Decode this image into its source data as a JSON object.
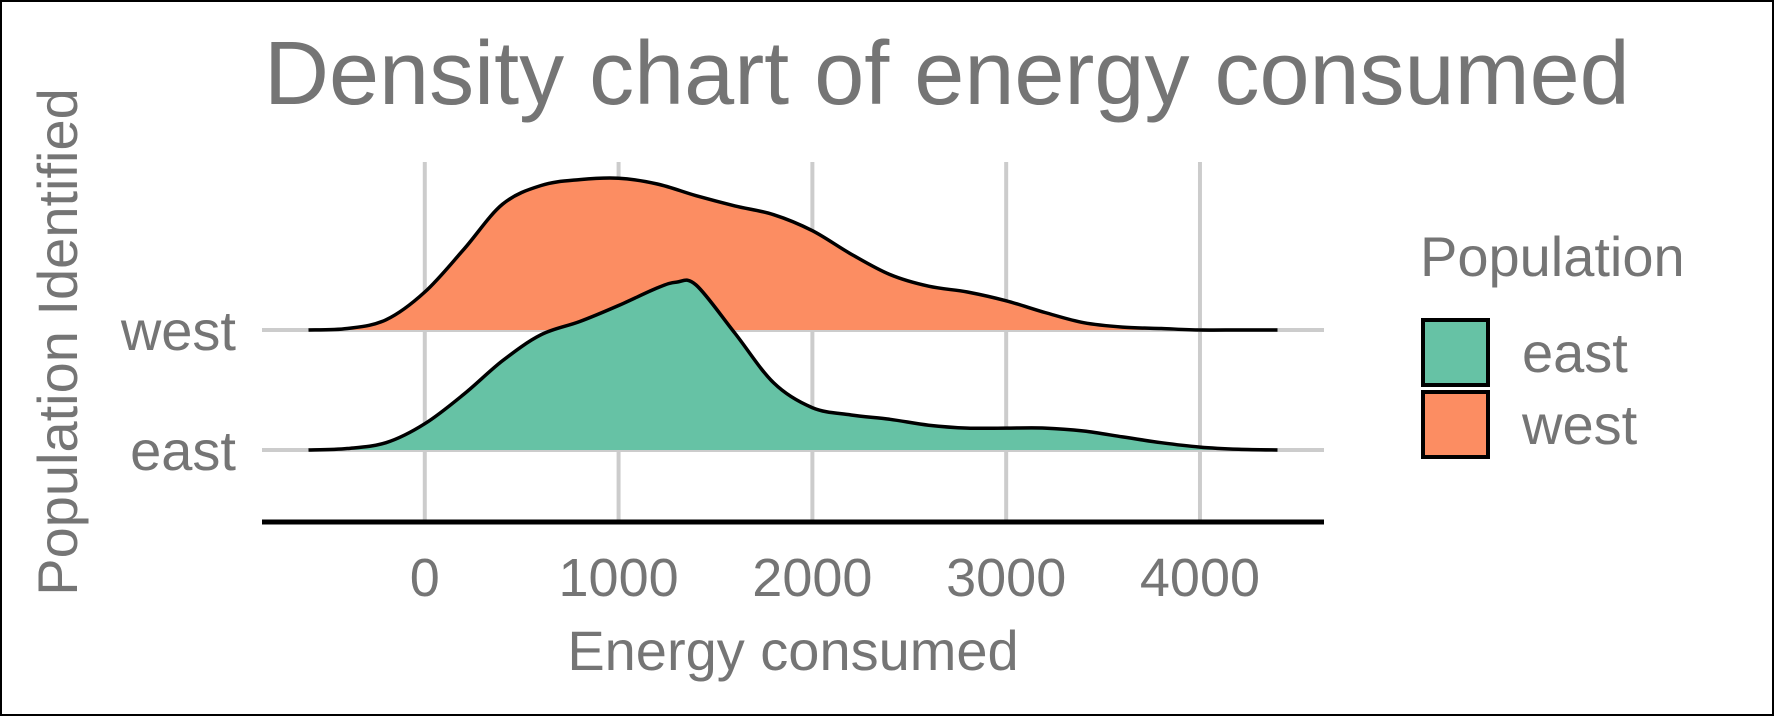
{
  "chart_data": {
    "type": "ridgeline-density",
    "title": "Density chart of energy consumed",
    "xlabel": "Energy consumed",
    "ylabel": "Population Identified",
    "xlim": [
      -840,
      4640
    ],
    "x_ticks": [
      0,
      1000,
      2000,
      3000,
      4000
    ],
    "x_tick_labels": [
      "0",
      "1000",
      "2000",
      "3000",
      "4000"
    ],
    "grid": true,
    "legend": {
      "title": "Population",
      "position": "right"
    },
    "series": [
      {
        "name": "east",
        "color": "#66c2a5",
        "x": [
          -600,
          -400,
          -200,
          0,
          200,
          400,
          600,
          800,
          1000,
          1200,
          1300,
          1400,
          1600,
          1800,
          2000,
          2200,
          2400,
          2600,
          2800,
          3000,
          3200,
          3400,
          3600,
          3800,
          4000,
          4200,
          4400
        ],
        "density": [
          0.0,
          0.01,
          0.05,
          0.18,
          0.38,
          0.61,
          0.79,
          0.88,
          0.99,
          1.11,
          1.15,
          1.13,
          0.8,
          0.46,
          0.29,
          0.24,
          0.21,
          0.17,
          0.15,
          0.15,
          0.15,
          0.13,
          0.09,
          0.05,
          0.02,
          0.005,
          0.0
        ]
      },
      {
        "name": "west",
        "color": "#fc8d62",
        "x": [
          -600,
          -400,
          -200,
          0,
          200,
          400,
          600,
          800,
          1000,
          1200,
          1400,
          1600,
          1800,
          2000,
          2200,
          2400,
          2600,
          2800,
          3000,
          3200,
          3400,
          3600,
          3800,
          4000,
          4200,
          4400
        ],
        "density": [
          0.0,
          0.01,
          0.07,
          0.26,
          0.55,
          0.86,
          0.99,
          1.03,
          1.04,
          1.0,
          0.92,
          0.85,
          0.79,
          0.68,
          0.52,
          0.38,
          0.3,
          0.26,
          0.2,
          0.12,
          0.05,
          0.02,
          0.01,
          0.0,
          0.0,
          0.0
        ]
      }
    ]
  }
}
